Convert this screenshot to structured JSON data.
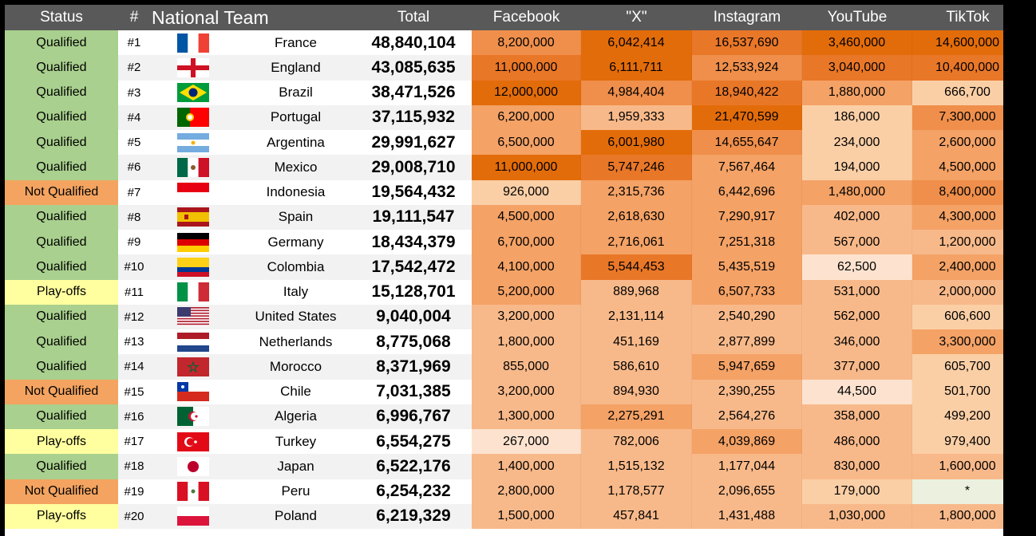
{
  "headers": {
    "status": "Status",
    "rank": "#",
    "team": "National Team",
    "total": "Total",
    "facebook": "Facebook",
    "x": "\"X\"",
    "instagram": "Instagram",
    "youtube": "YouTube",
    "tiktok": "TikTok"
  },
  "status_colors": {
    "Qualified": "#a9d08e",
    "Not Qualified": "#f4a460",
    "Play-offs": "#ffff9f"
  },
  "cell_palette": [
    "#fde3cf",
    "#fbcfa6",
    "#f8b98a",
    "#f4a266",
    "#ef8f4b",
    "#e97728",
    "#e36c0a"
  ],
  "rows": [
    {
      "status": "Qualified",
      "rank": "#1",
      "flag": "france-flag-icon",
      "team": "France",
      "total": "48,840,104",
      "facebook": "8,200,000",
      "x": "6,042,414",
      "instagram": "16,537,690",
      "youtube": "3,460,000",
      "tiktok": "14,600,000",
      "lv": [
        4,
        6,
        5,
        6,
        6
      ]
    },
    {
      "status": "Qualified",
      "rank": "#2",
      "flag": "england-flag-icon",
      "team": "England",
      "total": "43,085,635",
      "facebook": "11,000,000",
      "x": "6,111,711",
      "instagram": "12,533,924",
      "youtube": "3,040,000",
      "tiktok": "10,400,000",
      "lv": [
        5,
        6,
        4,
        5,
        5
      ]
    },
    {
      "status": "Qualified",
      "rank": "#3",
      "flag": "brazil-flag-icon",
      "team": "Brazil",
      "total": "38,471,526",
      "facebook": "12,000,000",
      "x": "4,984,404",
      "instagram": "18,940,422",
      "youtube": "1,880,000",
      "tiktok": "666,700",
      "lv": [
        6,
        4,
        5,
        3,
        1
      ]
    },
    {
      "status": "Qualified",
      "rank": "#4",
      "flag": "portugal-flag-icon",
      "team": "Portugal",
      "total": "37,115,932",
      "facebook": "6,200,000",
      "x": "1,959,333",
      "instagram": "21,470,599",
      "youtube": "186,000",
      "tiktok": "7,300,000",
      "lv": [
        3,
        2,
        6,
        1,
        4
      ]
    },
    {
      "status": "Qualified",
      "rank": "#5",
      "flag": "argentina-flag-icon",
      "team": "Argentina",
      "total": "29,991,627",
      "facebook": "6,500,000",
      "x": "6,001,980",
      "instagram": "14,655,647",
      "youtube": "234,000",
      "tiktok": "2,600,000",
      "lv": [
        3,
        6,
        4,
        1,
        3
      ]
    },
    {
      "status": "Qualified",
      "rank": "#6",
      "flag": "mexico-flag-icon",
      "team": "Mexico",
      "total": "29,008,710",
      "facebook": "11,000,000",
      "x": "5,747,246",
      "instagram": "7,567,464",
      "youtube": "194,000",
      "tiktok": "4,500,000",
      "lv": [
        6,
        5,
        3,
        1,
        3
      ]
    },
    {
      "status": "Not Qualified",
      "rank": "#7",
      "flag": "indonesia-flag-icon",
      "team": "Indonesia",
      "total": "19,564,432",
      "facebook": "926,000",
      "x": "2,315,736",
      "instagram": "6,442,696",
      "youtube": "1,480,000",
      "tiktok": "8,400,000",
      "lv": [
        1,
        3,
        3,
        3,
        4
      ]
    },
    {
      "status": "Qualified",
      "rank": "#8",
      "flag": "spain-flag-icon",
      "team": "Spain",
      "total": "19,111,547",
      "facebook": "4,500,000",
      "x": "2,618,630",
      "instagram": "7,290,917",
      "youtube": "402,000",
      "tiktok": "4,300,000",
      "lv": [
        3,
        3,
        3,
        2,
        3
      ]
    },
    {
      "status": "Qualified",
      "rank": "#9",
      "flag": "germany-flag-icon",
      "team": "Germany",
      "total": "18,434,379",
      "facebook": "6,700,000",
      "x": "2,716,061",
      "instagram": "7,251,318",
      "youtube": "567,000",
      "tiktok": "1,200,000",
      "lv": [
        3,
        3,
        3,
        2,
        2
      ]
    },
    {
      "status": "Qualified",
      "rank": "#10",
      "flag": "colombia-flag-icon",
      "team": "Colombia",
      "total": "17,542,472",
      "facebook": "4,100,000",
      "x": "5,544,453",
      "instagram": "5,435,519",
      "youtube": "62,500",
      "tiktok": "2,400,000",
      "lv": [
        3,
        5,
        3,
        0,
        3
      ]
    },
    {
      "status": "Play-offs",
      "rank": "#11",
      "flag": "italy-flag-icon",
      "team": "Italy",
      "total": "15,128,701",
      "facebook": "5,200,000",
      "x": "889,968",
      "instagram": "6,507,733",
      "youtube": "531,000",
      "tiktok": "2,000,000",
      "lv": [
        3,
        2,
        3,
        2,
        2
      ]
    },
    {
      "status": "Qualified",
      "rank": "#12",
      "flag": "usa-flag-icon",
      "team": "United States",
      "total": "9,040,004",
      "facebook": "3,200,000",
      "x": "2,131,114",
      "instagram": "2,540,290",
      "youtube": "562,000",
      "tiktok": "606,600",
      "lv": [
        2,
        2,
        2,
        2,
        1
      ]
    },
    {
      "status": "Qualified",
      "rank": "#13",
      "flag": "netherlands-flag-icon",
      "team": "Netherlands",
      "total": "8,775,068",
      "facebook": "1,800,000",
      "x": "451,169",
      "instagram": "2,877,899",
      "youtube": "346,000",
      "tiktok": "3,300,000",
      "lv": [
        2,
        2,
        2,
        2,
        3
      ]
    },
    {
      "status": "Qualified",
      "rank": "#14",
      "flag": "morocco-flag-icon",
      "team": "Morocco",
      "total": "8,371,969",
      "facebook": "855,000",
      "x": "586,610",
      "instagram": "5,947,659",
      "youtube": "377,000",
      "tiktok": "605,700",
      "lv": [
        2,
        2,
        3,
        2,
        1
      ]
    },
    {
      "status": "Not Qualified",
      "rank": "#15",
      "flag": "chile-flag-icon",
      "team": "Chile",
      "total": "7,031,385",
      "facebook": "3,200,000",
      "x": "894,930",
      "instagram": "2,390,255",
      "youtube": "44,500",
      "tiktok": "501,700",
      "lv": [
        2,
        2,
        2,
        0,
        1
      ]
    },
    {
      "status": "Qualified",
      "rank": "#16",
      "flag": "algeria-flag-icon",
      "team": "Algeria",
      "total": "6,996,767",
      "facebook": "1,300,000",
      "x": "2,275,291",
      "instagram": "2,564,276",
      "youtube": "358,000",
      "tiktok": "499,200",
      "lv": [
        2,
        3,
        2,
        2,
        1
      ]
    },
    {
      "status": "Play-offs",
      "rank": "#17",
      "flag": "turkey-flag-icon",
      "team": "Turkey",
      "total": "6,554,275",
      "facebook": "267,000",
      "x": "782,006",
      "instagram": "4,039,869",
      "youtube": "486,000",
      "tiktok": "979,400",
      "lv": [
        0,
        2,
        3,
        2,
        1
      ]
    },
    {
      "status": "Qualified",
      "rank": "#18",
      "flag": "japan-flag-icon",
      "team": "Japan",
      "total": "6,522,176",
      "facebook": "1,400,000",
      "x": "1,515,132",
      "instagram": "1,177,044",
      "youtube": "830,000",
      "tiktok": "1,600,000",
      "lv": [
        2,
        2,
        2,
        2,
        2
      ]
    },
    {
      "status": "Not Qualified",
      "rank": "#19",
      "flag": "peru-flag-icon",
      "team": "Peru",
      "total": "6,254,232",
      "facebook": "2,800,000",
      "x": "1,178,577",
      "instagram": "2,096,655",
      "youtube": "179,000",
      "tiktok": "*",
      "lv": [
        2,
        2,
        2,
        1,
        -1
      ]
    },
    {
      "status": "Play-offs",
      "rank": "#20",
      "flag": "poland-flag-icon",
      "team": "Poland",
      "total": "6,219,329",
      "facebook": "1,500,000",
      "x": "457,841",
      "instagram": "1,431,488",
      "youtube": "1,030,000",
      "tiktok": "1,800,000",
      "lv": [
        2,
        2,
        2,
        2,
        2
      ]
    }
  ]
}
